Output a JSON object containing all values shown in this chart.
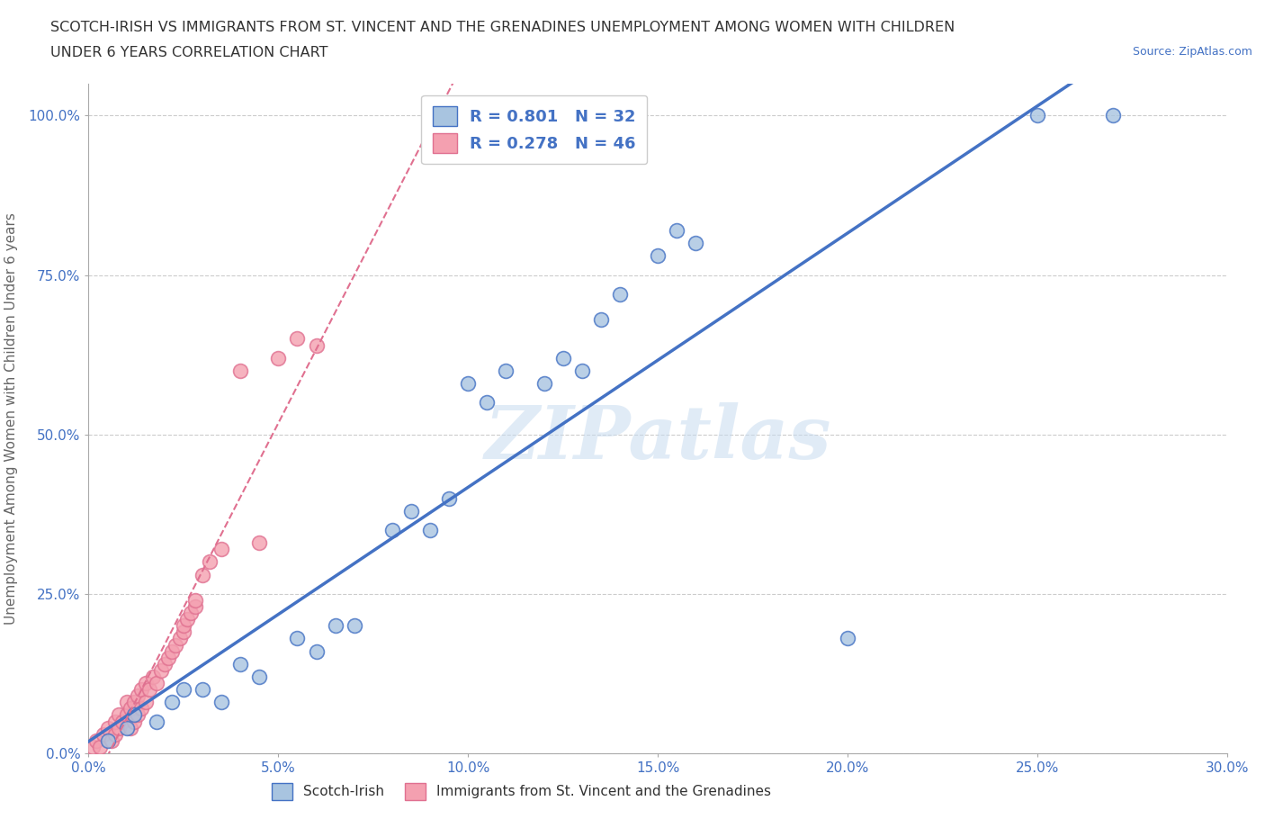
{
  "title_line1": "SCOTCH-IRISH VS IMMIGRANTS FROM ST. VINCENT AND THE GRENADINES UNEMPLOYMENT AMONG WOMEN WITH CHILDREN",
  "title_line2": "UNDER 6 YEARS CORRELATION CHART",
  "source": "Source: ZipAtlas.com",
  "ylabel": "Unemployment Among Women with Children Under 6 years",
  "watermark": "ZIPatlas",
  "xlim": [
    0.0,
    0.3
  ],
  "ylim": [
    0.0,
    1.05
  ],
  "xticks": [
    0.0,
    0.05,
    0.1,
    0.15,
    0.2,
    0.25,
    0.3
  ],
  "xticklabels": [
    "0.0%",
    "5.0%",
    "10.0%",
    "15.0%",
    "20.0%",
    "25.0%",
    "30.0%"
  ],
  "yticks": [
    0.0,
    0.25,
    0.5,
    0.75,
    1.0
  ],
  "yticklabels": [
    "0.0%",
    "25.0%",
    "50.0%",
    "75.0%",
    "100.0%"
  ],
  "scotch_irish_x": [
    0.005,
    0.01,
    0.012,
    0.018,
    0.022,
    0.025,
    0.03,
    0.035,
    0.04,
    0.045,
    0.055,
    0.06,
    0.065,
    0.07,
    0.08,
    0.085,
    0.09,
    0.095,
    0.1,
    0.105,
    0.11,
    0.12,
    0.125,
    0.13,
    0.135,
    0.14,
    0.15,
    0.155,
    0.16,
    0.2,
    0.25,
    0.27
  ],
  "scotch_irish_y": [
    0.02,
    0.04,
    0.06,
    0.05,
    0.08,
    0.1,
    0.1,
    0.08,
    0.14,
    0.12,
    0.18,
    0.16,
    0.2,
    0.2,
    0.35,
    0.38,
    0.35,
    0.4,
    0.58,
    0.55,
    0.6,
    0.58,
    0.62,
    0.6,
    0.68,
    0.72,
    0.78,
    0.82,
    0.8,
    0.18,
    1.0,
    1.0
  ],
  "svg_x": [
    0.001,
    0.002,
    0.003,
    0.004,
    0.005,
    0.006,
    0.007,
    0.007,
    0.008,
    0.008,
    0.009,
    0.01,
    0.01,
    0.011,
    0.011,
    0.012,
    0.012,
    0.013,
    0.013,
    0.014,
    0.014,
    0.015,
    0.015,
    0.016,
    0.017,
    0.018,
    0.019,
    0.02,
    0.021,
    0.022,
    0.023,
    0.024,
    0.025,
    0.025,
    0.026,
    0.027,
    0.028,
    0.028,
    0.03,
    0.032,
    0.035,
    0.04,
    0.045,
    0.05,
    0.055,
    0.06
  ],
  "svg_y": [
    0.01,
    0.02,
    0.01,
    0.03,
    0.04,
    0.02,
    0.03,
    0.05,
    0.04,
    0.06,
    0.05,
    0.06,
    0.08,
    0.04,
    0.07,
    0.05,
    0.08,
    0.06,
    0.09,
    0.07,
    0.1,
    0.08,
    0.11,
    0.1,
    0.12,
    0.11,
    0.13,
    0.14,
    0.15,
    0.16,
    0.17,
    0.18,
    0.19,
    0.2,
    0.21,
    0.22,
    0.23,
    0.24,
    0.28,
    0.3,
    0.32,
    0.6,
    0.33,
    0.62,
    0.65,
    0.64
  ],
  "scotch_irish_color": "#a8c4e0",
  "svg_color": "#f4a0b0",
  "scotch_irish_line_color": "#4472c4",
  "svg_line_color": "#e07090",
  "R_scotch": "0.801",
  "N_scotch": "32",
  "R_svg": "0.278",
  "N_svg": "46",
  "legend_label_1": "Scotch-Irish",
  "legend_label_2": "Immigrants from St. Vincent and the Grenadines"
}
